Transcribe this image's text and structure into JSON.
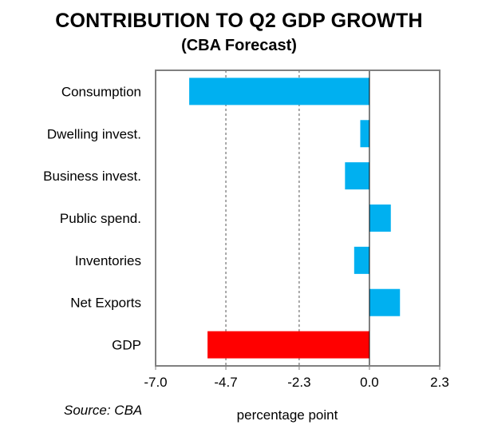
{
  "chart_data": {
    "type": "bar",
    "orientation": "horizontal",
    "title": "CONTRIBUTION TO Q2 GDP GROWTH",
    "subtitle": "(CBA Forecast)",
    "xlabel": "percentage point",
    "source": "Source: CBA",
    "categories": [
      "Consumption",
      "Dwelling invest.",
      "Business invest.",
      "Public spend.",
      "Inventories",
      "Net Exports",
      "GDP"
    ],
    "values": [
      -5.9,
      -0.3,
      -0.8,
      0.7,
      -0.5,
      1.0,
      -5.3
    ],
    "colors": [
      "#00b0f0",
      "#00b0f0",
      "#00b0f0",
      "#00b0f0",
      "#00b0f0",
      "#00b0f0",
      "#ff0000"
    ],
    "xlim": [
      -7.0,
      2.3
    ],
    "xticks": [
      -7.0,
      -4.7,
      -2.3,
      0.0,
      2.3
    ],
    "xtick_labels": [
      "-7.0",
      "-4.7",
      "-2.3",
      "0.0",
      "2.3"
    ],
    "gridlines": [
      -4.7,
      -2.3
    ],
    "grid": "vertical dashed"
  }
}
